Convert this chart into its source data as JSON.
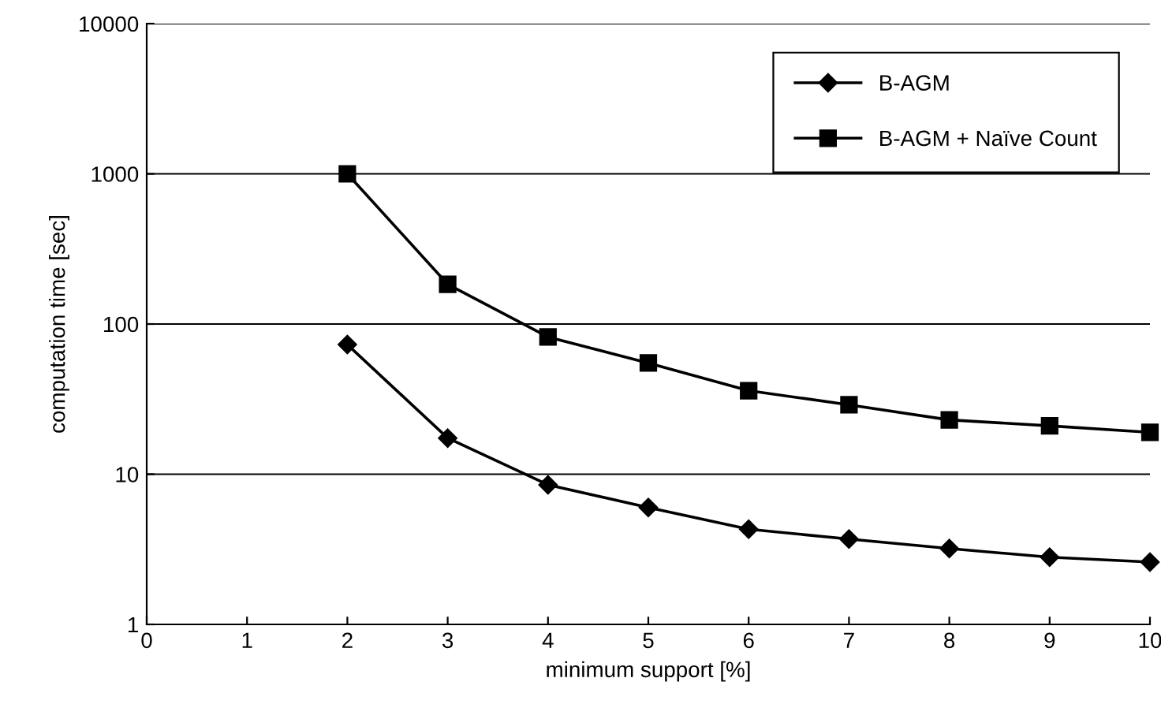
{
  "chart_data": {
    "type": "line",
    "xlabel": "minimum support [%]",
    "ylabel": "computation time [sec]",
    "xlim": [
      0,
      10
    ],
    "xticks": [
      0,
      1,
      2,
      3,
      4,
      5,
      6,
      7,
      8,
      9,
      10
    ],
    "ylim": [
      1,
      10000
    ],
    "yticks": [
      1,
      10,
      100,
      1000,
      10000
    ],
    "log": "y",
    "grid": "y",
    "legend": "top right",
    "line_style": "solid",
    "series": [
      {
        "name": "B-AGM",
        "color": "#000000",
        "marker": "diamond",
        "x": [
          2,
          3,
          4,
          5,
          6,
          7,
          8,
          9,
          10
        ],
        "values": [
          73,
          17.4,
          8.5,
          6.0,
          4.3,
          3.7,
          3.2,
          2.8,
          2.6
        ]
      },
      {
        "name": "B-AGM + Naïve Count",
        "color": "#000000",
        "marker": "square",
        "x": [
          2,
          3,
          4,
          5,
          6,
          7,
          8,
          9,
          10
        ],
        "values": [
          1000,
          184,
          82,
          55,
          36,
          29,
          23,
          21,
          19
        ]
      }
    ]
  }
}
